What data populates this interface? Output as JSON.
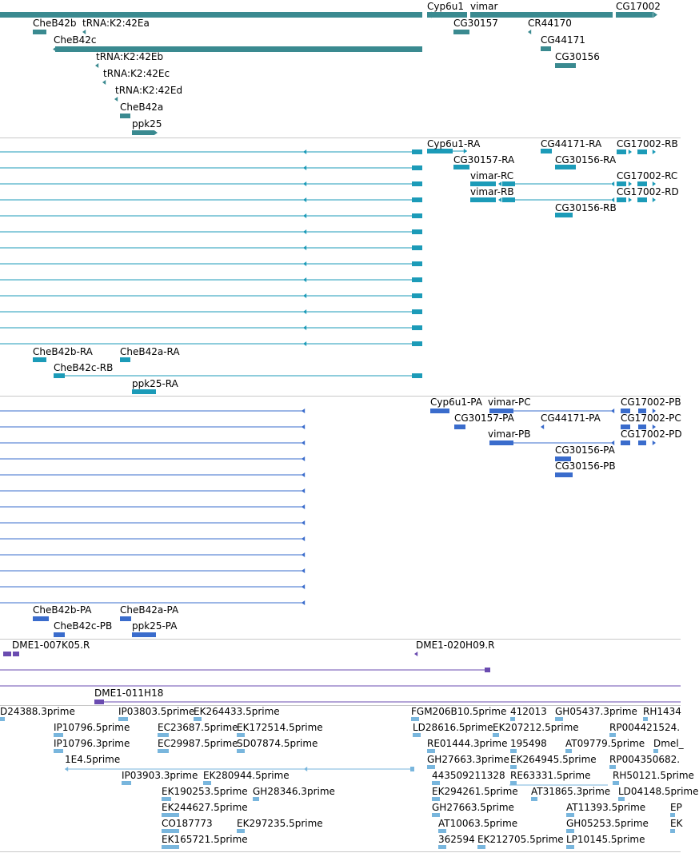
{
  "colors": {
    "genes": "#3a8a90",
    "transcripts": "#1c9bb8",
    "proteins": "#3a6ccc",
    "clones": "#6a4bb0",
    "ests": "#79b6dd",
    "separator": "#c8c8c8"
  },
  "tracks": [
    {
      "id": "genes",
      "color_key": "genes",
      "features": [
        {
          "label": "Cyp6u1"
        },
        {
          "label": "vimar"
        },
        {
          "label": "CG17002"
        },
        {
          "label": "CheB42b"
        },
        {
          "label": "tRNA:K2:42Ea"
        },
        {
          "label": "CG30157"
        },
        {
          "label": "CR44170"
        },
        {
          "label": "CheB42c"
        },
        {
          "label": "CG44171"
        },
        {
          "label": "tRNA:K2:42Eb"
        },
        {
          "label": "CG30156"
        },
        {
          "label": "tRNA:K2:42Ec"
        },
        {
          "label": "tRNA:K2:42Ed"
        },
        {
          "label": "CheB42a"
        },
        {
          "label": "ppk25"
        }
      ]
    },
    {
      "id": "transcripts",
      "color_key": "transcripts",
      "features": [
        {
          "label": "Cyp6u1-RA"
        },
        {
          "label": "CG44171-RA"
        },
        {
          "label": "CG17002-RB"
        },
        {
          "label": "CG30157-RA"
        },
        {
          "label": "CG30156-RA"
        },
        {
          "label": "vimar-RC"
        },
        {
          "label": "CG17002-RC"
        },
        {
          "label": "vimar-RB"
        },
        {
          "label": "CG17002-RD"
        },
        {
          "label": "CG30156-RB"
        },
        {
          "label": "CheB42b-RA"
        },
        {
          "label": "CheB42a-RA"
        },
        {
          "label": "CheB42c-RB"
        },
        {
          "label": "ppk25-RA"
        }
      ]
    },
    {
      "id": "proteins",
      "color_key": "proteins",
      "features": [
        {
          "label": "Cyp6u1-PA"
        },
        {
          "label": "vimar-PC"
        },
        {
          "label": "CG17002-PB"
        },
        {
          "label": "CG30157-PA"
        },
        {
          "label": "CG44171-PA"
        },
        {
          "label": "CG17002-PC"
        },
        {
          "label": "vimar-PB"
        },
        {
          "label": "CG17002-PD"
        },
        {
          "label": "CG30156-PA"
        },
        {
          "label": "CG30156-PB"
        },
        {
          "label": "CheB42b-PA"
        },
        {
          "label": "CheB42a-PA"
        },
        {
          "label": "CheB42c-PB"
        },
        {
          "label": "ppk25-PA"
        }
      ]
    },
    {
      "id": "clones",
      "color_key": "clones",
      "features": [
        {
          "label": "DME1-007K05.R"
        },
        {
          "label": "DME1-020H09.R"
        },
        {
          "label": "DME1-011H18"
        }
      ]
    },
    {
      "id": "ests",
      "color_key": "ests",
      "features": [
        {
          "label": "D24388.3prime"
        },
        {
          "label": "IP03803.5prime"
        },
        {
          "label": "EK264433.5prime"
        },
        {
          "label": "FGM206B10.5prime"
        },
        {
          "label": "412013"
        },
        {
          "label": "GH05437.3prime"
        },
        {
          "label": "RH1434"
        },
        {
          "label": "IP10796.5prime"
        },
        {
          "label": "EC23687.5prime"
        },
        {
          "label": "EK172514.5prime"
        },
        {
          "label": "LD28616.5prime"
        },
        {
          "label": "EK207212.5prime"
        },
        {
          "label": "RP004421524."
        },
        {
          "label": "IP10796.3prime"
        },
        {
          "label": "EC29987.5prime"
        },
        {
          "label": "SD07874.5prime"
        },
        {
          "label": "RE01444.3prime"
        },
        {
          "label": "195498"
        },
        {
          "label": "AT09779.5prime"
        },
        {
          "label": "Dmel_"
        },
        {
          "label": "1E4.5prime"
        },
        {
          "label": "GH27663.3prime"
        },
        {
          "label": "EK264945.5prime"
        },
        {
          "label": "RP004350682."
        },
        {
          "label": "IP03903.3prime"
        },
        {
          "label": "EK280944.5prime"
        },
        {
          "label": "443509211328"
        },
        {
          "label": "RE63331.5prime"
        },
        {
          "label": "RH50121.5prime"
        },
        {
          "label": "EK190253.5prime"
        },
        {
          "label": "GH28346.3prime"
        },
        {
          "label": "EK294261.5prime"
        },
        {
          "label": "AT31865.3prime"
        },
        {
          "label": "LD04148.5prime"
        },
        {
          "label": "EK244627.5prime"
        },
        {
          "label": "GH27663.5prime"
        },
        {
          "label": "AT11393.5prime"
        },
        {
          "label": "EP"
        },
        {
          "label": "CO187773"
        },
        {
          "label": "EK297235.5prime"
        },
        {
          "label": "AT10063.5prime"
        },
        {
          "label": "GH05253.5prime"
        },
        {
          "label": "EK"
        },
        {
          "label": "EK165721.5prime"
        },
        {
          "label": "362594"
        },
        {
          "label": "EK212705.5prime"
        },
        {
          "label": "LP10145.5prime"
        }
      ]
    }
  ]
}
